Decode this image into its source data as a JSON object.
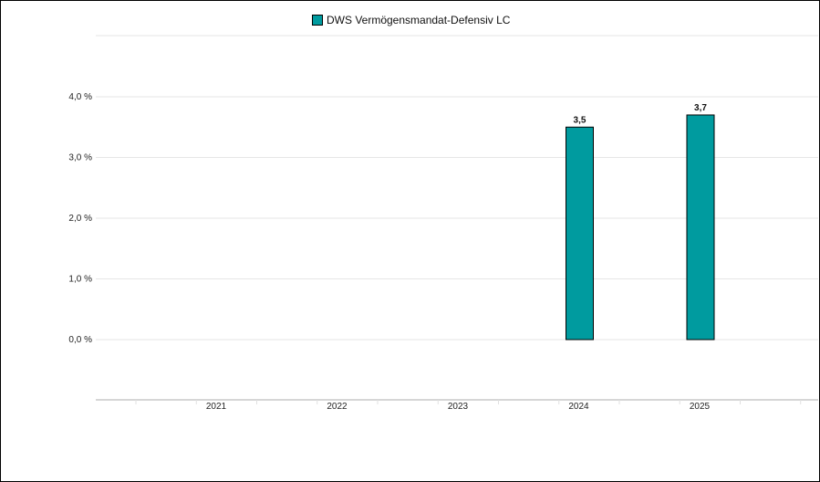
{
  "chart_data": {
    "type": "bar",
    "categories": [
      "2021",
      "2022",
      "2023",
      "2024",
      "2025"
    ],
    "series": [
      {
        "name": "DWS Vermögensmandat-Defensiv LC",
        "values": [
          null,
          null,
          null,
          3.5,
          3.7
        ],
        "labels": [
          "",
          "",
          "",
          "3,5",
          "3,7"
        ]
      }
    ],
    "y_ticks": [
      "0,0 %",
      "1,0 %",
      "2,0 %",
      "3,0 %",
      "4,0 %"
    ],
    "y_tick_values": [
      0,
      1,
      2,
      3,
      4
    ],
    "ylim": [
      -1,
      5
    ],
    "legend_position": "top-center",
    "grid": true,
    "colors": {
      "bar": "#009b9f",
      "bar_stroke": "#000000",
      "grid": "#e6e6e6"
    }
  },
  "legend": {
    "label": "DWS Vermögensmandat-Defensiv LC"
  }
}
